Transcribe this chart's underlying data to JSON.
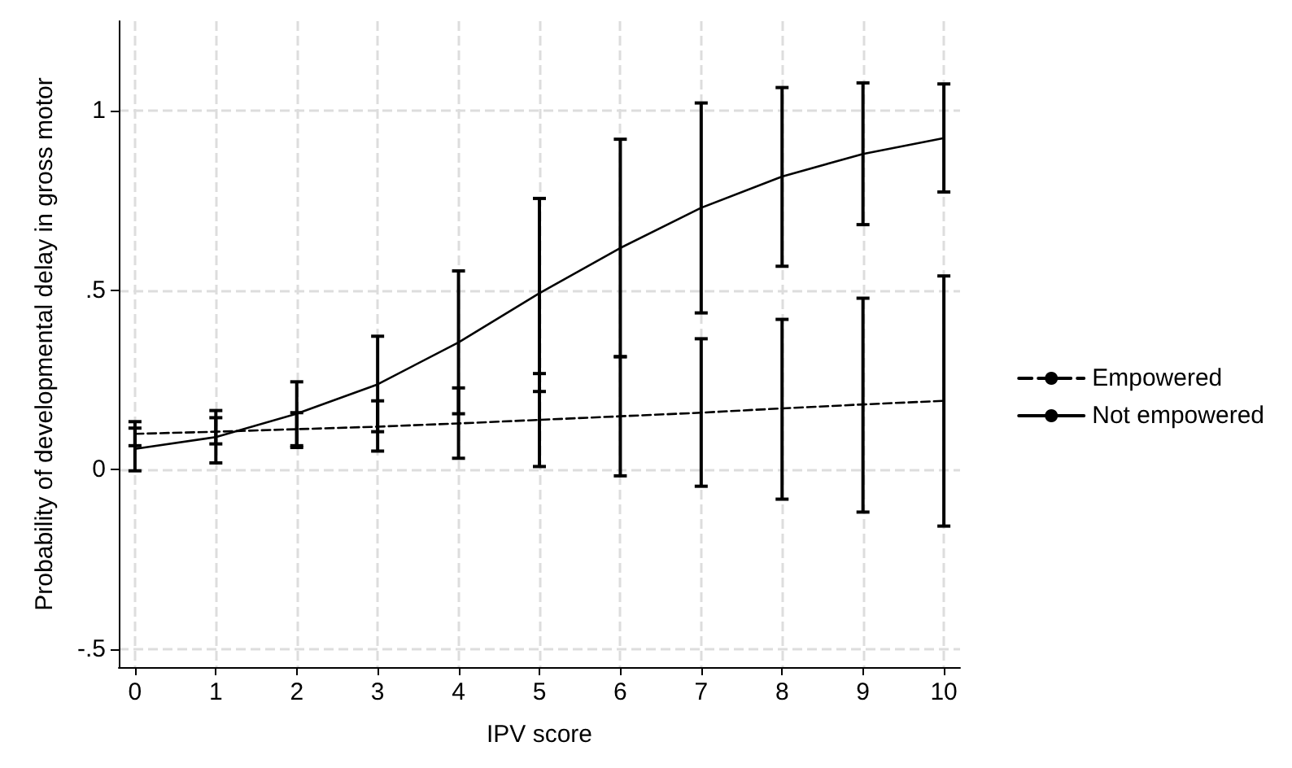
{
  "chart_data": {
    "type": "line",
    "xlabel": "IPV score",
    "ylabel": "Probability of developmental delay in gross motor",
    "x": [
      0,
      1,
      2,
      3,
      4,
      5,
      6,
      7,
      8,
      9,
      10
    ],
    "xlim": [
      -0.2,
      10.2
    ],
    "xticks": [
      0,
      1,
      2,
      3,
      4,
      5,
      6,
      7,
      8,
      9,
      10
    ],
    "ylim": [
      -0.55,
      1.25
    ],
    "yticks": [
      {
        "value": -0.5,
        "label": "-.5"
      },
      {
        "value": 0,
        "label": "0"
      },
      {
        "value": 0.5,
        "label": ".5"
      },
      {
        "value": 1,
        "label": "1"
      }
    ],
    "grid": true,
    "legend": "right",
    "marker": "none",
    "series": [
      {
        "name": "Empowered",
        "color": "#000000",
        "line_style": "dashed",
        "values": [
          0.1,
          0.106,
          0.113,
          0.12,
          0.129,
          0.139,
          0.149,
          0.159,
          0.171,
          0.182,
          0.192
        ],
        "errors": [
          [
            0.067,
            0.134
          ],
          [
            0.072,
            0.145
          ],
          [
            0.067,
            0.159
          ],
          [
            0.052,
            0.192
          ],
          [
            0.032,
            0.228
          ],
          [
            0.009,
            0.268
          ],
          [
            -0.017,
            0.315
          ],
          [
            -0.046,
            0.365
          ],
          [
            -0.082,
            0.419
          ],
          [
            -0.118,
            0.478
          ],
          [
            -0.157,
            0.54
          ]
        ]
      },
      {
        "name": "Not empowered",
        "color": "#000000",
        "line_style": "solid",
        "values": [
          0.058,
          0.091,
          0.156,
          0.238,
          0.355,
          0.492,
          0.618,
          0.73,
          0.817,
          0.88,
          0.924
        ],
        "errors": [
          [
            -0.003,
            0.116
          ],
          [
            0.019,
            0.165
          ],
          [
            0.062,
            0.245
          ],
          [
            0.106,
            0.372
          ],
          [
            0.156,
            0.554
          ],
          [
            0.218,
            0.756
          ],
          [
            0.315,
            0.921
          ],
          [
            0.437,
            1.022
          ],
          [
            0.567,
            1.065
          ],
          [
            0.683,
            1.078
          ],
          [
            0.774,
            1.075
          ]
        ]
      }
    ]
  }
}
